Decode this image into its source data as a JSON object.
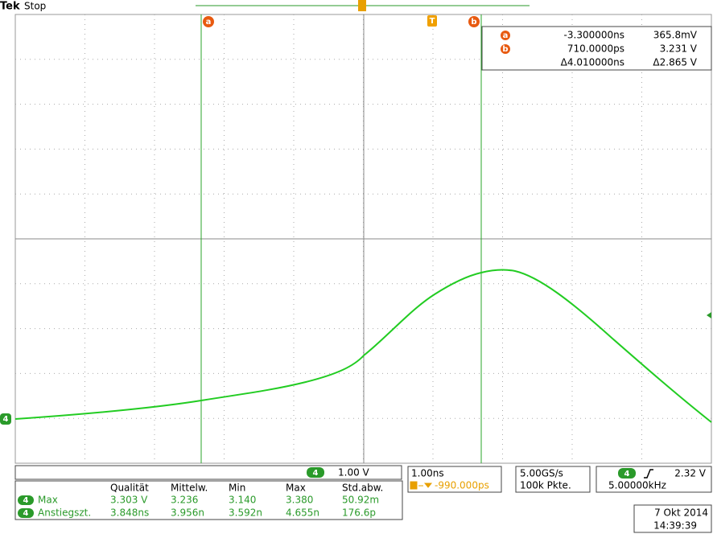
{
  "header": {
    "brand": "Tek",
    "status": "Stop"
  },
  "markers": {
    "cursor_a": "a",
    "cursor_b": "b",
    "trigger": "T",
    "channel": "4"
  },
  "cursor_readout": {
    "a": {
      "label": "a",
      "time": "-3.300000ns",
      "voltage": "365.8mV"
    },
    "b": {
      "label": "b",
      "time": "710.0000ps",
      "voltage": "3.231 V"
    },
    "delta": {
      "time": "Δ4.010000ns",
      "voltage": "Δ2.865 V"
    }
  },
  "channel_scale": {
    "channel": "4",
    "value": "1.00 V"
  },
  "timebase": {
    "scale": "1.00ns",
    "position": "-990.000ps"
  },
  "acquisition": {
    "rate": "5.00GS/s",
    "length": "100k Pkte."
  },
  "trigger": {
    "channel": "4",
    "level": "2.32 V",
    "frequency": "5.00000kHz"
  },
  "measurements": {
    "columns": [
      "Qualität",
      "Mittelw.",
      "Min",
      "Max",
      "Std.abw."
    ],
    "rows": [
      {
        "channel": "4",
        "name": "Max",
        "values": [
          "3.303 V",
          "3.236",
          "3.140",
          "3.380",
          "50.92m"
        ]
      },
      {
        "channel": "4",
        "name": "Anstiegszt.",
        "values": [
          "3.848ns",
          "3.956n",
          "3.592n",
          "4.655n",
          "176.6p"
        ]
      }
    ]
  },
  "datetime": {
    "date": "7 Okt 2014",
    "time": "14:39:39"
  }
}
